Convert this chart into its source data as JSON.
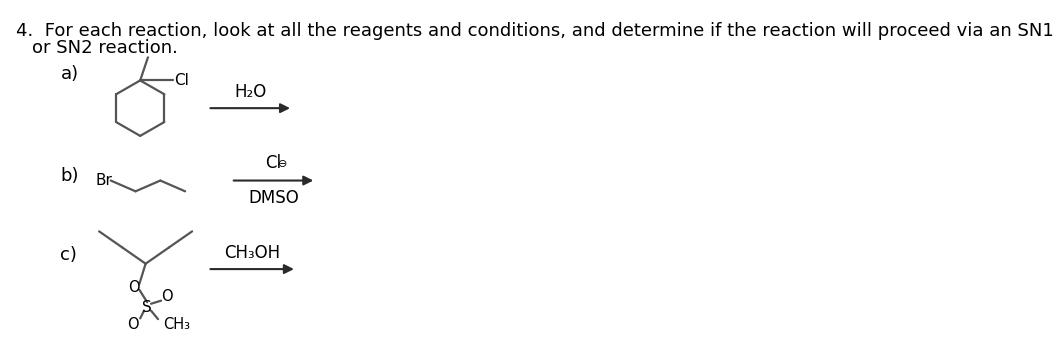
{
  "title_text": "4.  For each reaction, look at all the reagents and conditions, and determine if the reaction will proceed via an SN1",
  "title_text2": "or SN2 reaction.",
  "bg_color": "#ffffff",
  "text_color": "#3a3a3a",
  "label_a": "a)",
  "label_b": "b)",
  "label_c": "c)",
  "reagent_a": "H₂O",
  "reagent_b_line1": "Cl⊖",
  "reagent_b_line2": "DMSO",
  "reagent_c": "CH₃OH",
  "font_size_title": 13,
  "font_size_label": 13,
  "font_size_reagent": 12,
  "arrow_color": "#2a2a2a",
  "bond_color": "#555555",
  "bond_lw": 1.6
}
